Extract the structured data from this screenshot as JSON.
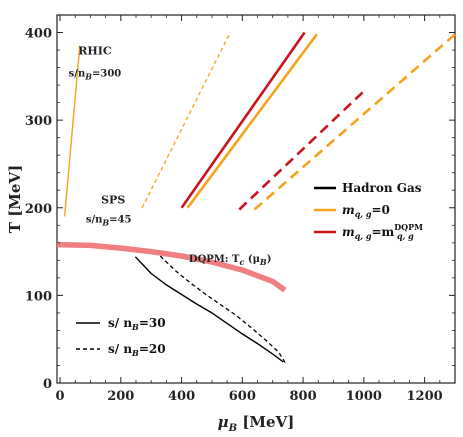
{
  "chart_data": {
    "type": "line",
    "xlabel": "μ",
    "xlabel_sub": "B",
    "xlabel_unit": " [MeV]",
    "ylabel": "T [MeV]",
    "xlim": [
      -10,
      1300
    ],
    "ylim": [
      0,
      420
    ],
    "x_ticks": [
      0,
      200,
      400,
      600,
      800,
      1000,
      1200
    ],
    "y_ticks": [
      0,
      100,
      200,
      300,
      400
    ],
    "grid": false,
    "colors": {
      "hadron_gas": "#000000",
      "massless": "#f5a31e",
      "dqpm_mass": "#c8141e",
      "tc_curve": "#f08080"
    },
    "series": [
      {
        "name": "",
        "kind": "massless",
        "style": "solid-thin",
        "x": [
          15,
          65
        ],
        "y": [
          190,
          385
        ]
      },
      {
        "name": "",
        "kind": "massless",
        "style": "dashed-thin",
        "x": [
          270,
          560
        ],
        "y": [
          200,
          400
        ]
      },
      {
        "name": "",
        "kind": "dqpm_mass",
        "style": "solid-thick",
        "x": [
          400,
          805
        ],
        "y": [
          200,
          400
        ]
      },
      {
        "name": "",
        "kind": "massless",
        "style": "solid-thick",
        "x": [
          420,
          845
        ],
        "y": [
          200,
          398
        ]
      },
      {
        "name": "",
        "kind": "dqpm_mass",
        "style": "dashed-thick",
        "x": [
          590,
          1000
        ],
        "y": [
          198,
          333
        ]
      },
      {
        "name": "",
        "kind": "massless",
        "style": "dashed-thick",
        "x": [
          640,
          1300
        ],
        "y": [
          198,
          398
        ]
      },
      {
        "name": "",
        "kind": "hadron_gas",
        "style": "solid-thin",
        "x": [
          248,
          300,
          350,
          400,
          450,
          500,
          550,
          600,
          650,
          700,
          735
        ],
        "y": [
          144,
          125,
          112,
          101,
          90,
          80,
          68,
          56,
          45,
          33,
          24
        ]
      },
      {
        "name": "",
        "kind": "hadron_gas",
        "style": "dashed-thin",
        "x": [
          330,
          380,
          430,
          480,
          530,
          580,
          630,
          680,
          720,
          745
        ],
        "y": [
          145,
          128,
          114,
          101,
          89,
          77,
          63,
          48,
          35,
          21
        ]
      },
      {
        "name": "",
        "kind": "tc_curve",
        "style": "solid-band",
        "x": [
          -10,
          100,
          200,
          300,
          400,
          500,
          600,
          700,
          740
        ],
        "y": [
          158,
          157,
          154,
          150,
          145,
          138,
          129,
          116,
          106
        ]
      }
    ],
    "annotations": [
      {
        "text": "RHIC",
        "x": 115,
        "y": 375
      },
      {
        "text": "s/n",
        "sub": "B",
        "tail": "=300",
        "x": 115,
        "y": 350
      },
      {
        "text": "SPS",
        "x": 175,
        "y": 205
      },
      {
        "text": "s/n",
        "sub": "B",
        "tail": "=45",
        "x": 160,
        "y": 183
      },
      {
        "text": "DQPM: T",
        "sub": "c",
        "tail": " (μ",
        "sub2": "B",
        "tail2": ")",
        "x": 560,
        "y": 138
      }
    ],
    "legends": [
      {
        "placement": "middle-right",
        "entries": [
          {
            "kind": "hadron_gas",
            "text": "Hadron Gas"
          },
          {
            "kind": "massless",
            "text": "m",
            "sub": "q, g",
            "tail": "=0"
          },
          {
            "kind": "dqpm_mass",
            "text": "m",
            "sub": "q, g",
            "tail": "=m",
            "sup": "DQPM",
            "sub2": "q, g"
          }
        ]
      },
      {
        "placement": "bottom-left",
        "entries": [
          {
            "style": "solid",
            "text": "s/ n",
            "sub": "B",
            "tail": "=30"
          },
          {
            "style": "dashed",
            "text": "s/ n",
            "sub": "B",
            "tail": "=20"
          }
        ]
      }
    ]
  }
}
